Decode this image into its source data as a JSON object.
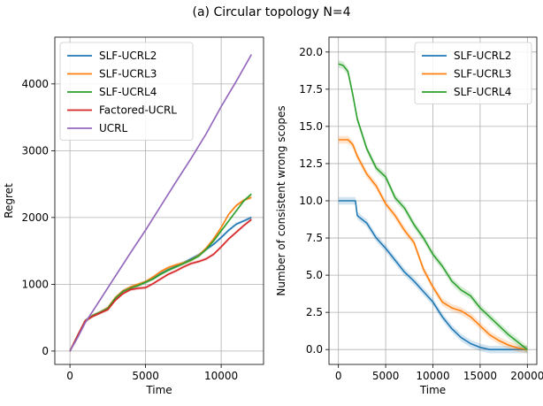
{
  "figure_title": "(a) Circular topology N=4",
  "chart_data": [
    {
      "type": "line",
      "xlabel": "Time",
      "ylabel": "Regret",
      "xlim": [
        -1000,
        12800
      ],
      "ylim": [
        -200,
        4700
      ],
      "xticks": [
        0,
        5000,
        10000
      ],
      "yticks": [
        0,
        1000,
        2000,
        3000,
        4000
      ],
      "grid": true,
      "legend_position": "top-left",
      "series": [
        {
          "name": "SLF-UCRL2",
          "color": "#1f77b4",
          "x": [
            0,
            500,
            1000,
            1500,
            2000,
            2500,
            3000,
            3500,
            4000,
            4500,
            5000,
            5500,
            6000,
            6500,
            7000,
            7500,
            8000,
            8500,
            9000,
            9500,
            10000,
            10500,
            11000,
            11500,
            12000
          ],
          "y": [
            0,
            230,
            450,
            530,
            580,
            640,
            790,
            900,
            950,
            990,
            1030,
            1090,
            1160,
            1220,
            1270,
            1320,
            1380,
            1440,
            1520,
            1600,
            1700,
            1810,
            1900,
            1950,
            2000
          ]
        },
        {
          "name": "SLF-UCRL3",
          "color": "#ff7f0e",
          "x": [
            0,
            500,
            1000,
            1500,
            2000,
            2500,
            3000,
            3500,
            4000,
            4500,
            5000,
            5500,
            6000,
            6500,
            7000,
            7500,
            8000,
            8500,
            9000,
            9500,
            10000,
            10500,
            11000,
            11500,
            12000
          ],
          "y": [
            0,
            230,
            450,
            530,
            580,
            650,
            800,
            900,
            960,
            1000,
            1040,
            1110,
            1190,
            1250,
            1290,
            1320,
            1360,
            1430,
            1540,
            1680,
            1850,
            2050,
            2180,
            2260,
            2300
          ]
        },
        {
          "name": "SLF-UCRL4",
          "color": "#2ca02c",
          "x": [
            0,
            500,
            1000,
            1500,
            2000,
            2500,
            3000,
            3500,
            4000,
            4500,
            5000,
            5500,
            6000,
            6500,
            7000,
            7500,
            8000,
            8500,
            9000,
            9500,
            10000,
            10500,
            11000,
            11500,
            12000
          ],
          "y": [
            0,
            230,
            450,
            530,
            580,
            640,
            790,
            890,
            940,
            980,
            1030,
            1080,
            1150,
            1210,
            1260,
            1310,
            1360,
            1420,
            1520,
            1650,
            1800,
            1950,
            2100,
            2250,
            2350
          ]
        },
        {
          "name": "Factored-UCRL",
          "color": "#d62728",
          "x": [
            0,
            500,
            1000,
            1500,
            2000,
            2500,
            3000,
            3500,
            4000,
            4500,
            5000,
            5500,
            6000,
            6500,
            7000,
            7500,
            8000,
            8500,
            9000,
            9500,
            10000,
            10500,
            11000,
            11500,
            12000
          ],
          "y": [
            0,
            230,
            450,
            520,
            570,
            620,
            760,
            860,
            920,
            940,
            950,
            1010,
            1080,
            1150,
            1200,
            1260,
            1310,
            1340,
            1380,
            1450,
            1560,
            1680,
            1780,
            1880,
            1970
          ]
        },
        {
          "name": "UCRL",
          "color": "#9467bd",
          "x": [
            0,
            500,
            1000,
            2000,
            3000,
            4000,
            5000,
            6000,
            7000,
            8000,
            9000,
            10000,
            11000,
            12000
          ],
          "y": [
            0,
            200,
            420,
            770,
            1120,
            1470,
            1810,
            2170,
            2530,
            2880,
            3250,
            3660,
            4040,
            4440
          ]
        }
      ]
    },
    {
      "type": "line",
      "xlabel": "Time",
      "ylabel": "Number of consistent wrong scopes",
      "xlim": [
        -1000,
        21000
      ],
      "ylim": [
        -1,
        21
      ],
      "xticks": [
        0,
        5000,
        10000,
        15000,
        20000
      ],
      "yticks": [
        0.0,
        2.5,
        5.0,
        7.5,
        10.0,
        12.5,
        15.0,
        17.5,
        20.0
      ],
      "grid": true,
      "legend_position": "top-right",
      "series": [
        {
          "name": "SLF-UCRL2",
          "color": "#1f77b4",
          "x": [
            0,
            1800,
            2000,
            3000,
            4000,
            5000,
            6000,
            7000,
            8000,
            9000,
            10000,
            11000,
            12000,
            13000,
            14000,
            15000,
            16000,
            17000,
            18000,
            19000,
            20000
          ],
          "y": [
            10,
            10,
            9,
            8.5,
            7.5,
            6.8,
            6,
            5.2,
            4.6,
            3.9,
            3.2,
            2.2,
            1.4,
            0.8,
            0.4,
            0.15,
            0,
            0,
            0,
            0,
            0
          ]
        },
        {
          "name": "SLF-UCRL3",
          "color": "#ff7f0e",
          "x": [
            0,
            1000,
            1500,
            2000,
            3000,
            4000,
            5000,
            6000,
            7000,
            8000,
            9000,
            10000,
            11000,
            12000,
            13000,
            14000,
            15000,
            16000,
            17000,
            18000,
            19000,
            20000
          ],
          "y": [
            14.1,
            14.1,
            13.8,
            13,
            11.8,
            11,
            9.8,
            9,
            8,
            7.2,
            5.4,
            4.2,
            3.2,
            2.8,
            2.6,
            2.2,
            1.6,
            1.0,
            0.6,
            0.3,
            0.1,
            0
          ]
        },
        {
          "name": "SLF-UCRL4",
          "color": "#2ca02c",
          "x": [
            0,
            500,
            1000,
            1500,
            2000,
            3000,
            4000,
            5000,
            6000,
            7000,
            8000,
            9000,
            10000,
            11000,
            12000,
            13000,
            14000,
            15000,
            16000,
            17000,
            18000,
            19000,
            20000
          ],
          "y": [
            19.2,
            19.1,
            18.7,
            17.2,
            15.5,
            13.5,
            12.2,
            11.6,
            10.2,
            9.5,
            8.4,
            7.5,
            6.4,
            5.6,
            4.6,
            4.0,
            3.6,
            2.8,
            2.2,
            1.6,
            1.0,
            0.5,
            0
          ]
        }
      ]
    }
  ]
}
